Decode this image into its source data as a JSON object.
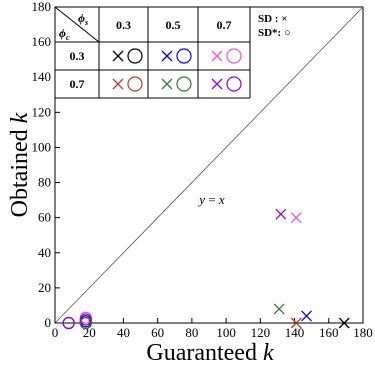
{
  "chart_data": {
    "type": "scatter",
    "xlabel": "Guaranteed k",
    "ylabel": "Obtained k",
    "xlabel_text": "Guaranteed ",
    "ylabel_text": "Obtained ",
    "axis_symbol": "k",
    "xlim": [
      0,
      180
    ],
    "ylim": [
      0,
      180
    ],
    "xticks": [
      0,
      20,
      40,
      60,
      80,
      100,
      120,
      140,
      160,
      180
    ],
    "yticks": [
      0,
      20,
      40,
      60,
      80,
      100,
      120,
      140,
      160,
      180
    ],
    "diagonal_label": "y = x",
    "diagonal_label_parts": [
      "y",
      " = ",
      "x"
    ],
    "legend_table": {
      "header_top": "ϕ",
      "header_top_sub": "s",
      "header_bottom": "ϕ",
      "header_bottom_sub": "c",
      "columns": [
        "0.3",
        "0.5",
        "0.7"
      ],
      "rows": [
        "0.3",
        "0.7"
      ]
    },
    "marker_legend": [
      {
        "label": "SD : ×",
        "marker": "x"
      },
      {
        "label": "SD*: ○",
        "marker": "o"
      }
    ],
    "series": [
      {
        "phi_c": "0.3",
        "phi_s": "0.3",
        "color": "#000000",
        "sd": [
          [
            169,
            0
          ]
        ],
        "sd_star": [
          [
            8,
            0
          ],
          [
            18,
            0
          ]
        ]
      },
      {
        "phi_c": "0.3",
        "phi_s": "0.5",
        "color": "#0000ff",
        "sd": [
          [
            147,
            4
          ]
        ],
        "sd_star": [
          [
            18,
            1
          ]
        ]
      },
      {
        "phi_c": "0.3",
        "phi_s": "0.7",
        "color": "#ff4fd8",
        "sd": [
          [
            141,
            60
          ]
        ],
        "sd_star": [
          [
            18,
            3
          ]
        ]
      },
      {
        "phi_c": "0.7",
        "phi_s": "0.3",
        "color": "#c0392b",
        "sd": [
          [
            141,
            0
          ]
        ],
        "sd_star": [
          [
            18,
            0
          ]
        ]
      },
      {
        "phi_c": "0.7",
        "phi_s": "0.5",
        "color": "#2e7d32",
        "sd": [
          [
            131,
            8
          ]
        ],
        "sd_star": [
          [
            18,
            0
          ]
        ]
      },
      {
        "phi_c": "0.7",
        "phi_s": "0.7",
        "color": "#9b00d6",
        "sd": [
          [
            132,
            62
          ]
        ],
        "sd_star": [
          [
            8,
            0
          ],
          [
            18,
            2
          ]
        ]
      }
    ]
  }
}
